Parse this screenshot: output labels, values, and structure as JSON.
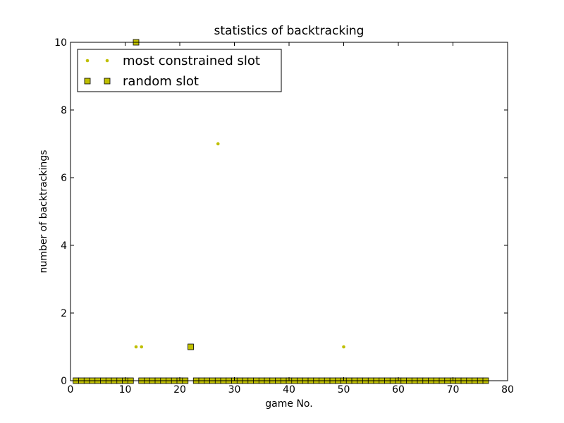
{
  "chart_data": {
    "type": "scatter",
    "title": "statistics of backtracking",
    "xlabel": "game No.",
    "ylabel": "number of backtrackings",
    "xlim": [
      0,
      80
    ],
    "ylim": [
      0,
      10
    ],
    "xticks": [
      0,
      10,
      20,
      30,
      40,
      50,
      60,
      70,
      80
    ],
    "yticks": [
      0,
      2,
      4,
      6,
      8,
      10
    ],
    "grid": false,
    "legend_position": "top-left",
    "series": [
      {
        "name": "most constrained slot",
        "marker": "dot",
        "color": "#bfbf00",
        "points": [
          [
            12,
            1
          ],
          [
            13,
            1
          ],
          [
            27,
            7
          ],
          [
            50,
            1
          ]
        ]
      },
      {
        "name": "random slot",
        "marker": "square",
        "color": "#bfbf00",
        "edge_color": "#000000",
        "points": [
          [
            1,
            0
          ],
          [
            2,
            0
          ],
          [
            3,
            0
          ],
          [
            4,
            0
          ],
          [
            5,
            0
          ],
          [
            6,
            0
          ],
          [
            7,
            0
          ],
          [
            8,
            0
          ],
          [
            9,
            0
          ],
          [
            10,
            0
          ],
          [
            11,
            0
          ],
          [
            12,
            10
          ],
          [
            13,
            0
          ],
          [
            14,
            0
          ],
          [
            15,
            0
          ],
          [
            16,
            0
          ],
          [
            17,
            0
          ],
          [
            18,
            0
          ],
          [
            19,
            0
          ],
          [
            20,
            0
          ],
          [
            21,
            0
          ],
          [
            22,
            1
          ],
          [
            23,
            0
          ],
          [
            24,
            0
          ],
          [
            25,
            0
          ],
          [
            26,
            0
          ],
          [
            27,
            0
          ],
          [
            28,
            0
          ],
          [
            29,
            0
          ],
          [
            30,
            0
          ],
          [
            31,
            0
          ],
          [
            32,
            0
          ],
          [
            33,
            0
          ],
          [
            34,
            0
          ],
          [
            35,
            0
          ],
          [
            36,
            0
          ],
          [
            37,
            0
          ],
          [
            38,
            0
          ],
          [
            39,
            0
          ],
          [
            40,
            0
          ],
          [
            41,
            0
          ],
          [
            42,
            0
          ],
          [
            43,
            0
          ],
          [
            44,
            0
          ],
          [
            45,
            0
          ],
          [
            46,
            0
          ],
          [
            47,
            0
          ],
          [
            48,
            0
          ],
          [
            49,
            0
          ],
          [
            50,
            0
          ],
          [
            51,
            0
          ],
          [
            52,
            0
          ],
          [
            53,
            0
          ],
          [
            54,
            0
          ],
          [
            55,
            0
          ],
          [
            56,
            0
          ],
          [
            57,
            0
          ],
          [
            58,
            0
          ],
          [
            59,
            0
          ],
          [
            60,
            0
          ],
          [
            61,
            0
          ],
          [
            62,
            0
          ],
          [
            63,
            0
          ],
          [
            64,
            0
          ],
          [
            65,
            0
          ],
          [
            66,
            0
          ],
          [
            67,
            0
          ],
          [
            68,
            0
          ],
          [
            69,
            0
          ],
          [
            70,
            0
          ],
          [
            71,
            0
          ],
          [
            72,
            0
          ],
          [
            73,
            0
          ],
          [
            74,
            0
          ],
          [
            75,
            0
          ],
          [
            76,
            0
          ]
        ]
      }
    ]
  }
}
